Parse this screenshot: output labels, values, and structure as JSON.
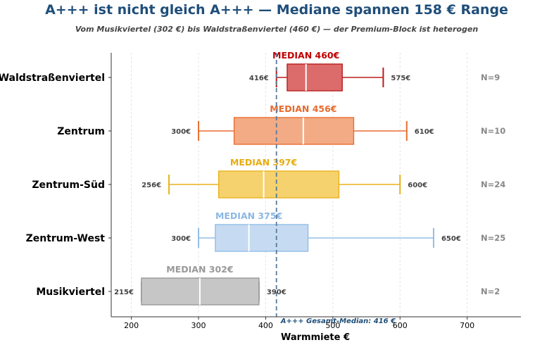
{
  "chart_data": {
    "type": "boxplot",
    "orientation": "horizontal",
    "title": "A+++ ist nicht gleich A+++ — Mediane spannen 158 € Range",
    "subtitle": "Vom Musikviertel (302 €) bis Waldstraßenviertel (460 €) — der Premium-Block ist heterogen",
    "xlabel": "Warmmiete €",
    "xlim": [
      170,
      780
    ],
    "xticks": [
      200,
      300,
      400,
      500,
      600,
      700
    ],
    "xtick_labels": [
      "200",
      "300",
      "400",
      "500",
      "600",
      "700"
    ],
    "grid": "vertical dashed",
    "reference_line": {
      "value": 416,
      "label": "A+++ Gesamt-Median: 416 €",
      "color": "#5a7a9a"
    },
    "series": [
      {
        "category": "Waldstraßenviertel",
        "min": 416,
        "q1": 432,
        "median": 460,
        "q3": 514,
        "max": 575,
        "n": 9,
        "median_label": "MEDIAN 460€",
        "min_label": "416€",
        "max_label": "575€",
        "n_label": "N=9",
        "fill": "#dc6b6b",
        "stroke": "#b81e1e",
        "text_color": "#c00000"
      },
      {
        "category": "Zentrum",
        "min": 300,
        "q1": 353,
        "median": 456,
        "q3": 531,
        "max": 610,
        "n": 10,
        "median_label": "MEDIAN 456€",
        "min_label": "300€",
        "max_label": "610€",
        "n_label": "N=10",
        "fill": "#f2ab85",
        "stroke": "#ea6e30",
        "text_color": "#e86a2c"
      },
      {
        "category": "Zentrum-Süd",
        "min": 256,
        "q1": 330,
        "median": 397,
        "q3": 509,
        "max": 600,
        "n": 24,
        "median_label": "MEDIAN 397€",
        "min_label": "256€",
        "max_label": "600€",
        "n_label": "N=24",
        "fill": "#f5d26d",
        "stroke": "#e8b21c",
        "text_color": "#e8ac10"
      },
      {
        "category": "Zentrum-West",
        "min": 300,
        "q1": 325,
        "median": 375,
        "q3": 463,
        "max": 650,
        "n": 25,
        "median_label": "MEDIAN 375€",
        "min_label": "300€",
        "max_label": "650€",
        "n_label": "N=25",
        "fill": "#c6dbf1",
        "stroke": "#92bde6",
        "text_color": "#8cb8e4"
      },
      {
        "category": "Musikviertel",
        "min": 215,
        "q1": 215,
        "median": 302,
        "q3": 390,
        "max": 390,
        "n": 2,
        "median_label": "MEDIAN 302€",
        "min_label": "215€",
        "max_label": "390€",
        "n_label": "N=2",
        "fill": "#c6c6c6",
        "stroke": "#999999",
        "text_color": "#999999"
      }
    ]
  }
}
